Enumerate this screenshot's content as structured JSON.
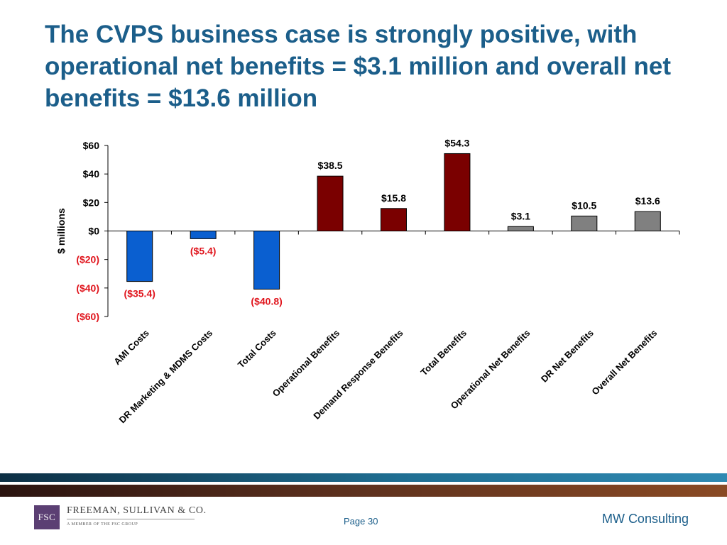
{
  "slide": {
    "title": "The CVPS business case is strongly positive, with operational net benefits = $3.1 million and overall net benefits = $13.6 million"
  },
  "chart_data": {
    "type": "bar",
    "ylabel": "$ millions",
    "ylim": [
      -60,
      60
    ],
    "yticks": [
      60,
      40,
      20,
      0,
      -20,
      -40,
      -60
    ],
    "ytick_labels": [
      "$60",
      "$40",
      "$20",
      "$0",
      "($20)",
      "($40)",
      "($60)"
    ],
    "categories": [
      "AMI Costs",
      "DR Marketing & MDMS Costs",
      "Total Costs",
      "Operational Benefits",
      "Demand Response Benefits",
      "Total Benefits",
      "Operational Net Benefits",
      "DR Net Benefits",
      "Overall Net Benefits"
    ],
    "values": [
      -35.4,
      -5.4,
      -40.8,
      38.5,
      15.8,
      54.3,
      3.1,
      10.5,
      13.6
    ],
    "data_labels": [
      "($35.4)",
      "($5.4)",
      "($40.8)",
      "$38.5",
      "$15.8",
      "$54.3",
      "$3.1",
      "$10.5",
      "$13.6"
    ],
    "bar_colors": [
      "#0a5fd0",
      "#0a5fd0",
      "#0a5fd0",
      "#7a0000",
      "#7a0000",
      "#7a0000",
      "#808080",
      "#808080",
      "#808080"
    ],
    "negative_label_color": "#e0141c",
    "positive_label_color": "#000000",
    "grid": false
  },
  "footer": {
    "logo_mark": "FSC",
    "logo_name": "FREEMAN, SULLIVAN & CO.",
    "logo_subtitle": "A MEMBER OF THE FSC GROUP",
    "page_label": "Page 30",
    "brand_text": "MW Consulting"
  }
}
